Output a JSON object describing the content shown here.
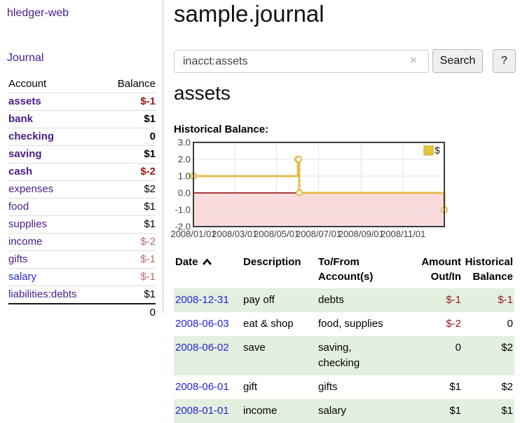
{
  "sidebar": {
    "brand": "hledger-web",
    "journal_link": "Journal",
    "accounts_header": {
      "account": "Account",
      "balance": "Balance"
    },
    "accounts": [
      {
        "name": "assets",
        "balance": "$-1",
        "level": 1,
        "bold": true,
        "neg": "strong"
      },
      {
        "name": "bank",
        "balance": "$1",
        "level": 2,
        "bold": true,
        "neg": ""
      },
      {
        "name": "checking",
        "balance": "0",
        "level": 3,
        "bold": true,
        "neg": ""
      },
      {
        "name": "saving",
        "balance": "$1",
        "level": 3,
        "bold": true,
        "neg": ""
      },
      {
        "name": "cash",
        "balance": "$-2",
        "level": 2,
        "bold": true,
        "neg": "strong"
      },
      {
        "name": "expenses",
        "balance": "$2",
        "level": 1,
        "bold": false,
        "neg": ""
      },
      {
        "name": "food",
        "balance": "$1",
        "level": 2,
        "bold": false,
        "neg": ""
      },
      {
        "name": "supplies",
        "balance": "$1",
        "level": 2,
        "bold": false,
        "neg": ""
      },
      {
        "name": "income",
        "balance": "$-2",
        "level": 1,
        "bold": false,
        "neg": "soft"
      },
      {
        "name": "gifts",
        "balance": "$-1",
        "level": 2,
        "bold": false,
        "neg": "soft"
      },
      {
        "name": "salary",
        "balance": "$-1",
        "level": 2,
        "bold": false,
        "neg": "soft",
        "link_style": "blue"
      },
      {
        "name": "liabilities:debts",
        "balance": "$1",
        "level": 1,
        "bold": false,
        "neg": ""
      }
    ],
    "total": "0"
  },
  "header": {
    "title": "sample.journal"
  },
  "search": {
    "value": "inacct:assets",
    "clear_icon": "×",
    "button_label": "Search",
    "help_label": "?"
  },
  "account_page": {
    "heading": "assets",
    "chart_label": "Historical Balance:"
  },
  "chart_data": {
    "type": "line",
    "step": true,
    "title": "Historical Balance:",
    "xlim": [
      "2008-01-01",
      "2008-12-31"
    ],
    "ylim": [
      -2,
      3
    ],
    "y_ticks": [
      {
        "label": "3.0",
        "value": 3
      },
      {
        "label": "2.0",
        "value": 2
      },
      {
        "label": "1.0",
        "value": 1
      },
      {
        "label": "0.0",
        "value": 0
      },
      {
        "label": "-1.0",
        "value": -1
      },
      {
        "label": "-2.0",
        "value": -2
      }
    ],
    "x_ticks": [
      {
        "label": "2008/01/01",
        "date": "2008-01-01"
      },
      {
        "label": "2008/03/01",
        "date": "2008-03-01"
      },
      {
        "label": "2008/05/01",
        "date": "2008-05-01"
      },
      {
        "label": "2008/07/01",
        "date": "2008-07-01"
      },
      {
        "label": "2008/09/01",
        "date": "2008-09-01"
      },
      {
        "label": "2008/11/01",
        "date": "2008-11-01"
      }
    ],
    "series": [
      {
        "name": "$",
        "points": [
          {
            "date": "2008-01-01",
            "value": 1
          },
          {
            "date": "2008-06-01",
            "value": 2
          },
          {
            "date": "2008-06-02",
            "value": 2
          },
          {
            "date": "2008-06-03",
            "value": 0
          },
          {
            "date": "2008-12-31",
            "value": -1
          }
        ]
      }
    ],
    "legend_position": "top-right",
    "grid": true,
    "colors": {
      "line": "#e4bc4e",
      "point_fill": "#ffffff",
      "negative_fill": "#fbdcdc",
      "zero_line": "#8b0000",
      "border": "#3d3d3d",
      "gridline": "#e4e4e4",
      "legend_fill": "#e9c53f",
      "legend_stroke": "#cf9f1f",
      "tick_text": "#3f3f3f"
    }
  },
  "register": {
    "columns": [
      {
        "key": "date",
        "label": "Date",
        "name": "column-header-date",
        "sort_icon": "chevron-up"
      },
      {
        "key": "desc",
        "label": "Description",
        "name": "column-header-description"
      },
      {
        "key": "accts",
        "label": "To/From\nAccount(s)",
        "name": "column-header-accounts"
      },
      {
        "key": "amount",
        "label": "Amount\nOut/In",
        "name": "column-header-amount",
        "align": "right"
      },
      {
        "key": "balance",
        "label": "Historical\nBalance",
        "name": "column-header-balance",
        "align": "right"
      }
    ],
    "rows": [
      {
        "date": "2008-12-31",
        "description": "pay off",
        "accounts": "debts",
        "amount": "$-1",
        "balance": "$-1",
        "amount_neg": true,
        "balance_neg": true
      },
      {
        "date": "2008-06-03",
        "description": "eat & shop",
        "accounts": "food, supplies",
        "amount": "$-2",
        "balance": "0",
        "amount_neg": true,
        "balance_neg": false
      },
      {
        "date": "2008-06-02",
        "description": "save",
        "accounts": "saving,\nchecking",
        "amount": "0",
        "balance": "$2",
        "amount_neg": false,
        "balance_neg": false
      },
      {
        "date": "2008-06-01",
        "description": "gift",
        "accounts": "gifts",
        "amount": "$1",
        "balance": "$2",
        "amount_neg": false,
        "balance_neg": false
      },
      {
        "date": "2008-01-01",
        "description": "income",
        "accounts": "salary",
        "amount": "$1",
        "balance": "$1",
        "amount_neg": false,
        "balance_neg": false
      }
    ]
  },
  "colors": {
    "link_purple": "#4a1b8c",
    "link_blue": "#2424dd",
    "negative_strong": "#941616",
    "negative_soft": "#b56a6a",
    "register_negative": "#8f2020",
    "row_green": "#e3efdf",
    "chart_line_gold": "#e4bc4e"
  }
}
